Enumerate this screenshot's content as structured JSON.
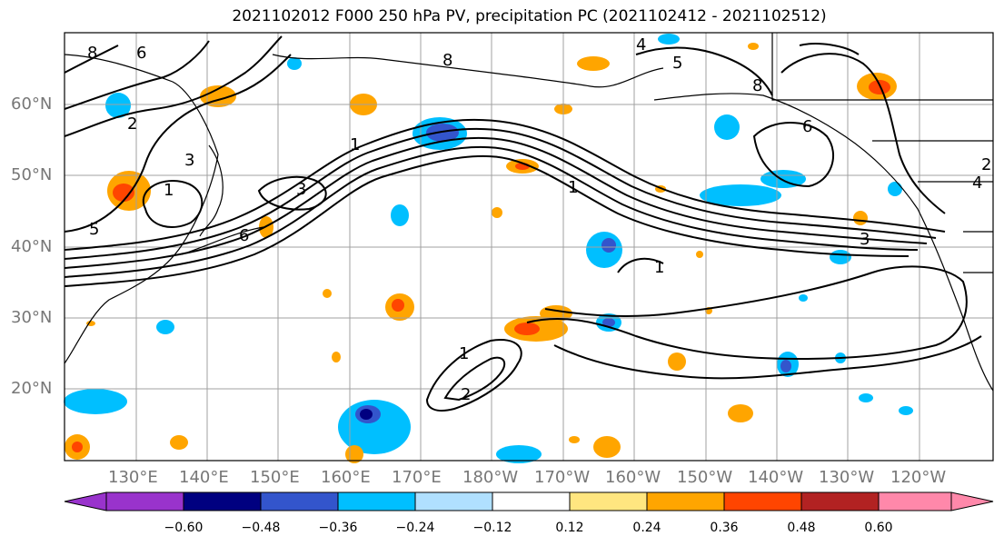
{
  "title": "2021102012 F000 250 hPa PV, precipitation PC (2021102412 - 2021102512)",
  "map": {
    "lat_labels": [
      "60°N",
      "50°N",
      "40°N",
      "30°N",
      "20°N"
    ],
    "lon_labels": [
      "130°E",
      "140°E",
      "150°E",
      "160°E",
      "170°E",
      "180°W",
      "170°W",
      "160°W",
      "150°W",
      "140°W",
      "130°W",
      "120°W"
    ],
    "contour_labels": [
      "8",
      "6",
      "4",
      "2",
      "3",
      "1",
      "5",
      "8",
      "1",
      "3",
      "6",
      "2",
      "1",
      "8",
      "6",
      "4",
      "3",
      "2",
      "1",
      "5",
      "1"
    ]
  },
  "colorbar": {
    "tick_labels": [
      "−0.60",
      "−0.48",
      "−0.36",
      "−0.24",
      "−0.12",
      "0.12",
      "0.24",
      "0.36",
      "0.48",
      "0.60"
    ],
    "colors": [
      "#9933cc",
      "#000080",
      "#3355cc",
      "#00bfff",
      "#b0e0ff",
      "#ffffff",
      "#ffe680",
      "#ffa500",
      "#ff4500",
      "#b22222",
      "#ff88aa"
    ]
  }
}
